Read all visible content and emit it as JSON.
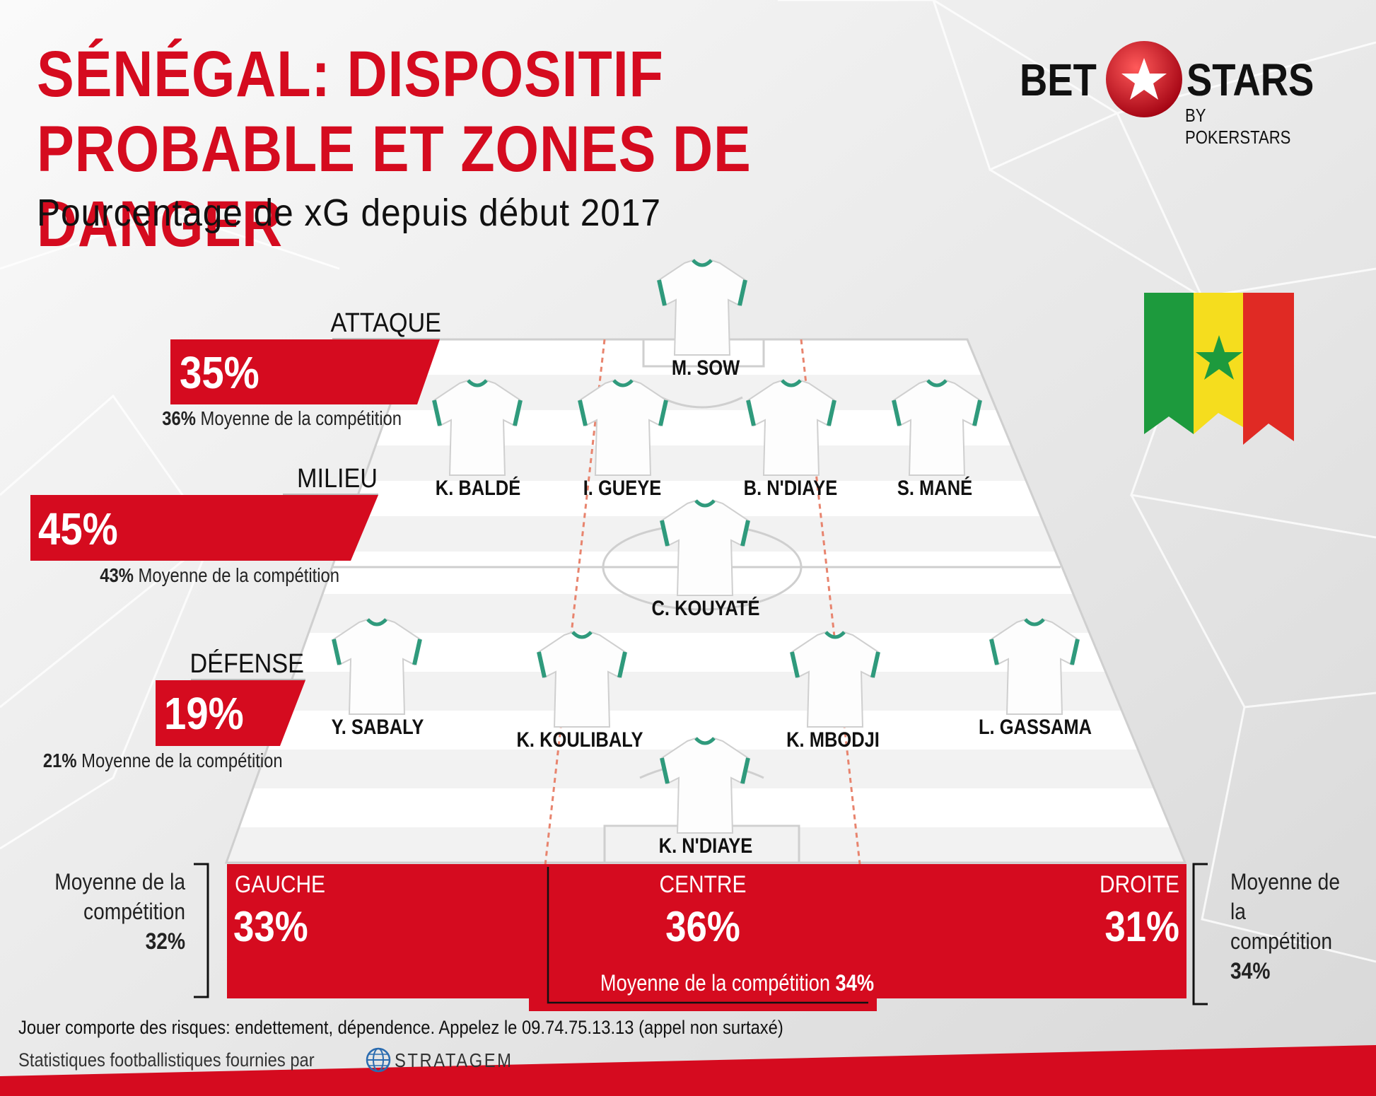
{
  "title_line1": "SÉNÉGAL: DISPOSITIF",
  "title_line2": "PROBABLE ET ZONES DE DANGER",
  "subtitle": "Pourcentage de xG depuis début 2017",
  "logo": {
    "bet": "BET",
    "stars": "STARS",
    "by": "BY POKERSTARS"
  },
  "zones": {
    "attaque": {
      "label": "ATTAQUE",
      "pct": "35%",
      "avg_pct": "36%",
      "avg_text": "Moyenne de la compétition"
    },
    "milieu": {
      "label": "MILIEU",
      "pct": "45%",
      "avg_pct": "43%",
      "avg_text": "Moyenne de la compétition"
    },
    "defense": {
      "label": "DÉFENSE",
      "pct": "19%",
      "avg_pct": "21%",
      "avg_text": "Moyenne de la compétition"
    }
  },
  "players": {
    "fwd": "M. SOW",
    "lm": "K. BALDÉ",
    "cm1": "I. GUEYE",
    "cm2": "B. N'DIAYE",
    "rm": "S. MANÉ",
    "dm": "C. KOUYATÉ",
    "lb": "Y. SABALY",
    "cb1": "K. KOULIBALY",
    "cb2": "K. MBODJI",
    "rb": "L. GASSAMA",
    "gk": "K. N'DIAYE"
  },
  "bars": {
    "gauche": {
      "label": "GAUCHE",
      "pct": "33%"
    },
    "centre": {
      "label": "CENTRE",
      "pct": "36%",
      "avg_text": "Moyenne de la compétition",
      "avg_pct": "34%"
    },
    "droite": {
      "label": "DROITE",
      "pct": "31%"
    }
  },
  "side_avg_left": {
    "line1": "Moyenne de la",
    "line2": "compétition",
    "pct": "32%"
  },
  "side_avg_right": {
    "line1": "Moyenne de la",
    "line2": "compétition",
    "pct": "34%"
  },
  "footer": {
    "disclaimer": "Jouer comporte des risques: endettement, dépendence. Appelez le 09.74.75.13.13 (appel non surtaxé)",
    "stats_credit": "Statistiques footballistiques fournies par",
    "stratagem": "STRATAGEM"
  },
  "colors": {
    "red": "#d50b1f",
    "pitch_stripe_a": "#ffffff",
    "pitch_stripe_b": "#f1f1f1"
  }
}
